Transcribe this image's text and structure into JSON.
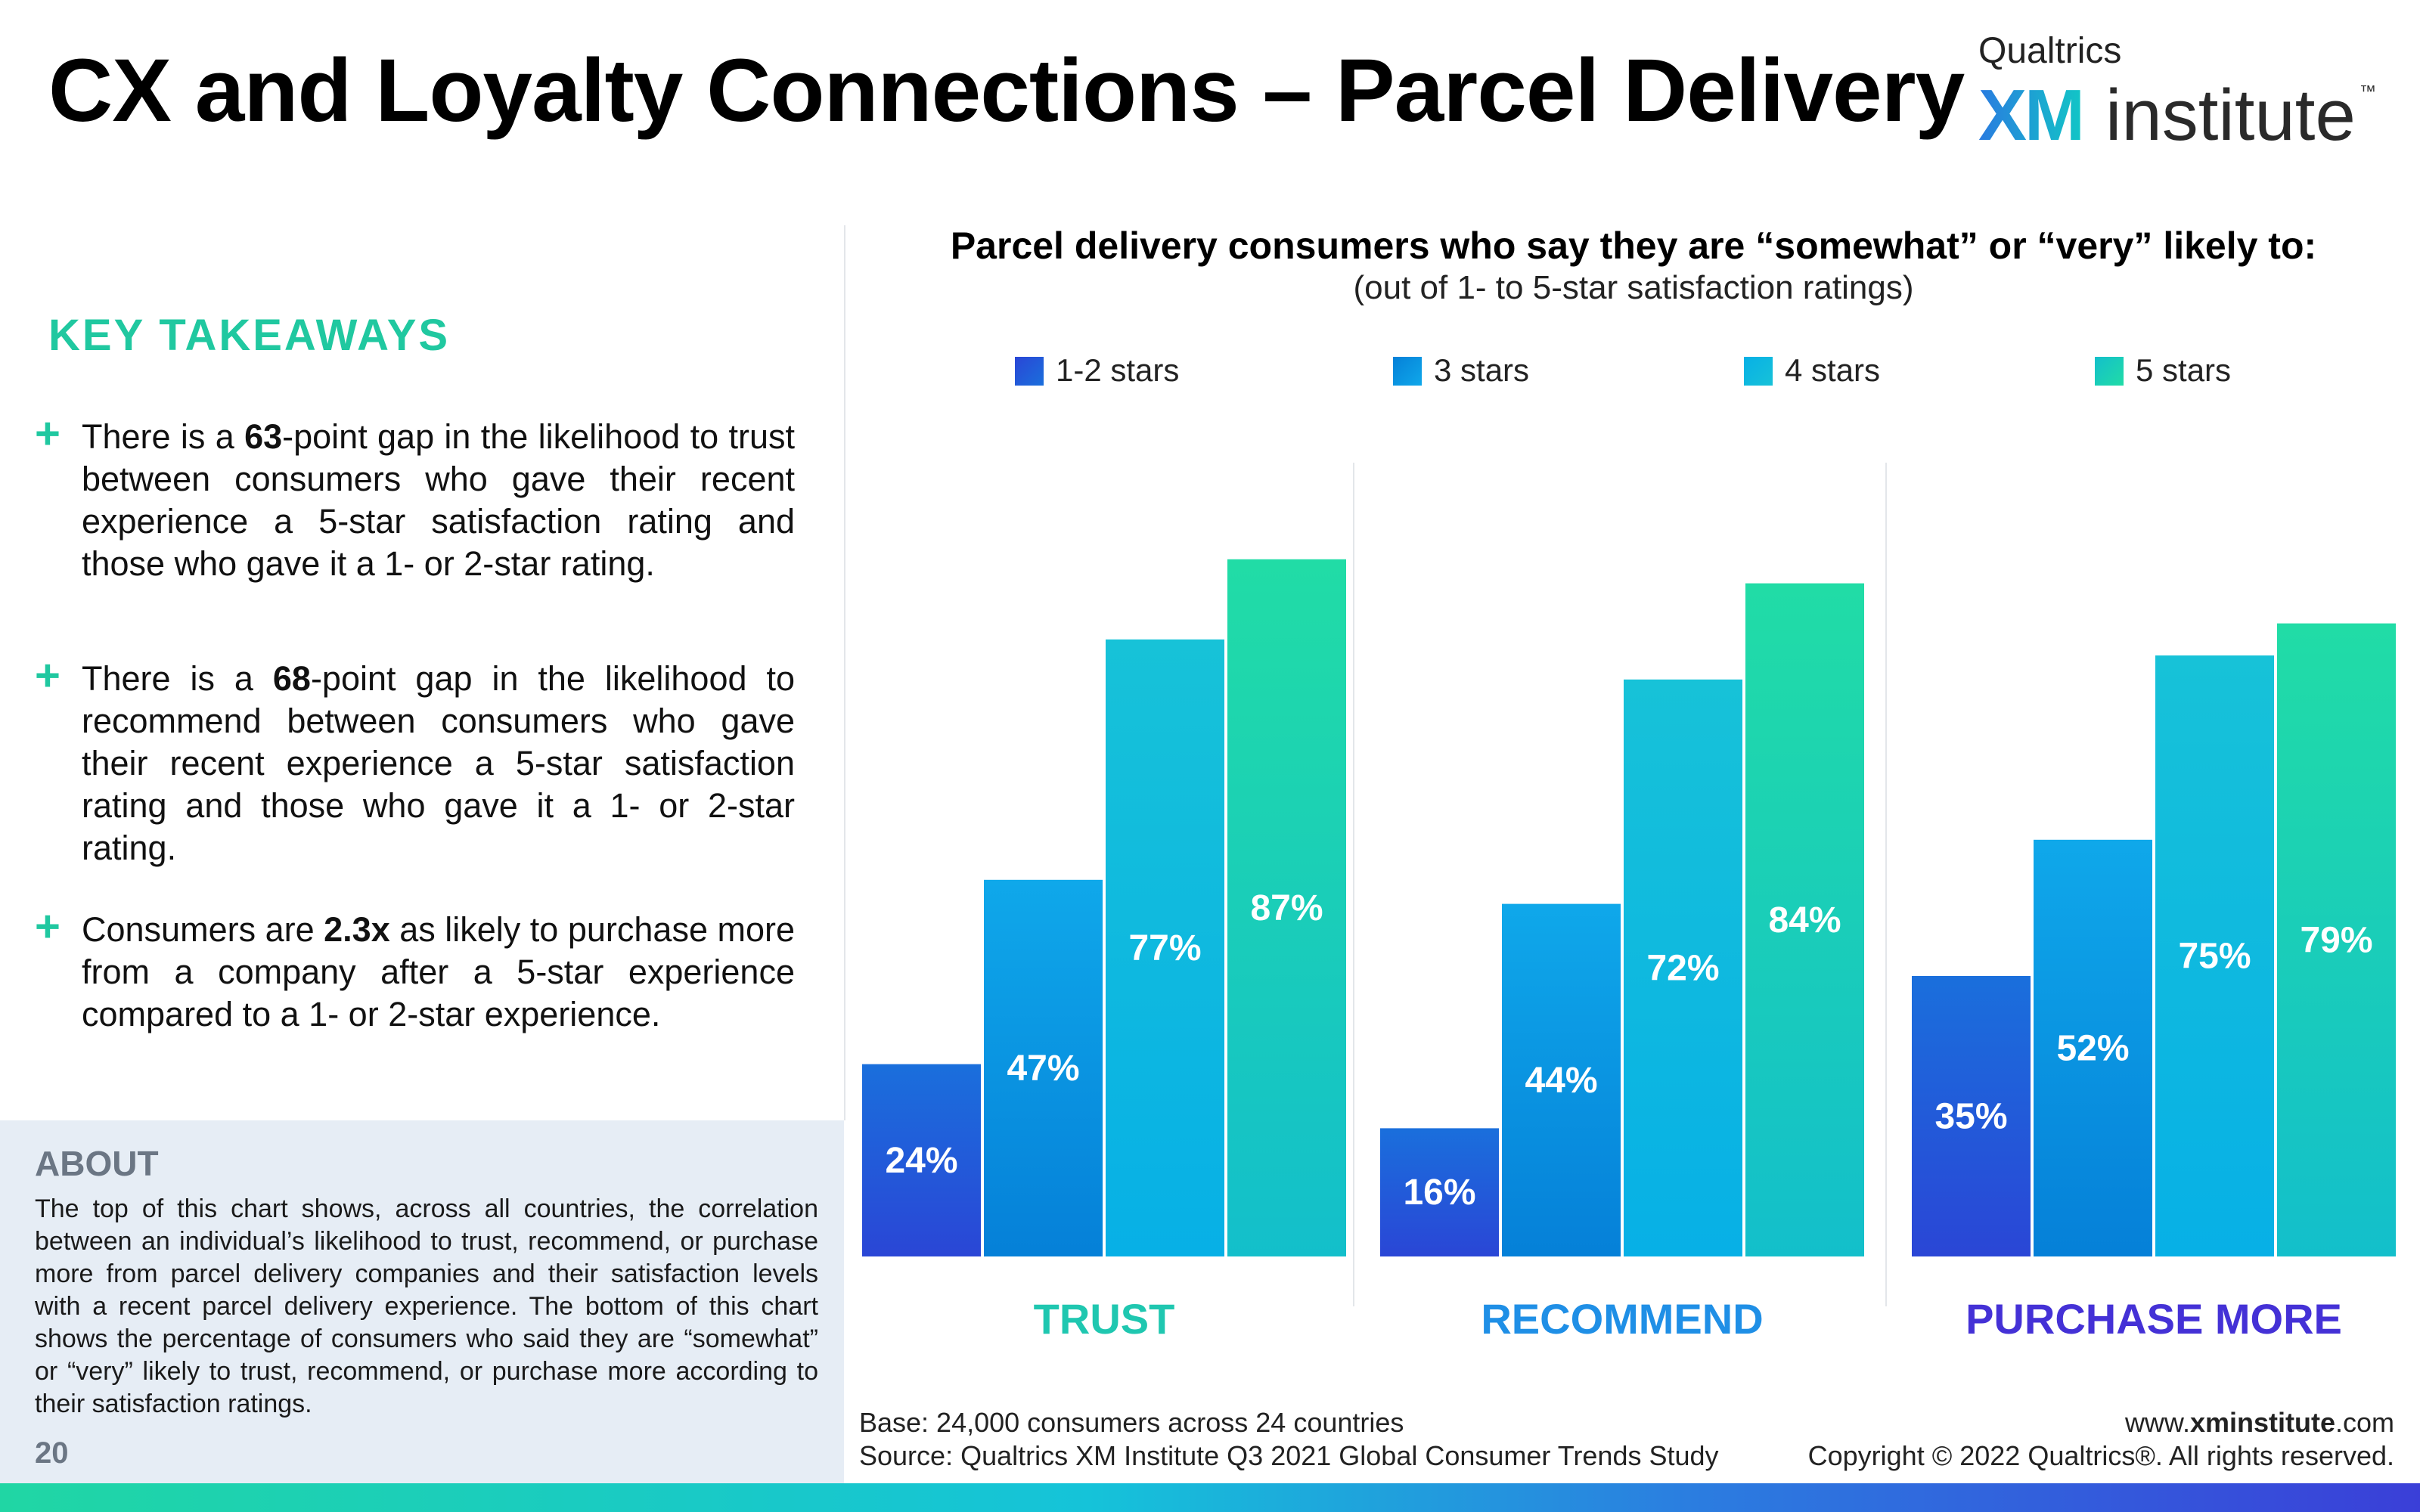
{
  "page": {
    "title": "CX and Loyalty Connections – Parcel Delivery",
    "page_number": "20"
  },
  "logo": {
    "brand": "Qualtrics",
    "xm": "XM",
    "institute": "institute",
    "tm": "™"
  },
  "key_takeaways": {
    "heading": "KEY TAKEAWAYS",
    "items": [
      {
        "pre": "There is a ",
        "bold": "63",
        "post": "-point gap in the likelihood to trust between consumers who gave their recent experience a 5-star satisfaction rating and those who gave it a 1- or 2-star rating."
      },
      {
        "pre": "There is a ",
        "bold": "68",
        "post": "-point gap in the likelihood to recommend between consumers who gave their recent experience a 5-star satisfaction rating and those who gave it a 1- or 2-star rating."
      },
      {
        "pre": "Consumers are ",
        "bold": "2.3x",
        "post": " as likely to purchase more from a company after a 5-star experience compared to a 1- or 2-star experience."
      }
    ]
  },
  "about": {
    "heading": "ABOUT",
    "body": "The top of this chart shows, across all countries, the correlation between an individual’s likelihood to trust, recommend, or purchase more from parcel delivery companies and their satisfaction levels with a recent parcel delivery experience. The bottom of this chart shows the percentage of consumers who said they are “somewhat” or “very” likely to trust, recommend, or purchase more according to their satisfaction ratings."
  },
  "chart_data": {
    "type": "bar",
    "title": "Parcel delivery consumers who say they are “somewhat” or “very” likely to:",
    "subtitle": "(out of 1- to 5-star satisfaction ratings)",
    "categories": [
      "TRUST",
      "RECOMMEND",
      "PURCHASE MORE"
    ],
    "category_colors": [
      "#1fc7b0",
      "#1f8fe6",
      "#4431d6"
    ],
    "series": [
      {
        "name": "1-2 stars",
        "values": [
          24,
          16,
          35
        ],
        "color_top": "#1a6fdc",
        "color_bottom": "#2a46d6"
      },
      {
        "name": "3 stars",
        "values": [
          47,
          44,
          52
        ],
        "color_top": "#0fa8ea",
        "color_bottom": "#0580d8"
      },
      {
        "name": "4 stars",
        "values": [
          77,
          72,
          75
        ],
        "color_top": "#17c2d8",
        "color_bottom": "#07b0e6"
      },
      {
        "name": "5 stars",
        "values": [
          87,
          84,
          79
        ],
        "color_top": "#21dca6",
        "color_bottom": "#13bfcb"
      }
    ],
    "unit": "%",
    "ylim": [
      0,
      100
    ],
    "grid": false,
    "legend_position": "top"
  },
  "footer": {
    "base": "Base: 24,000 consumers across 24 countries",
    "source": "Source: Qualtrics XM Institute Q3 2021 Global Consumer Trends Study",
    "url_prefix": "www.",
    "url_bold": "xminstitute",
    "url_suffix": ".com",
    "copyright": "Copyright © 2022 Qualtrics®. All rights reserved."
  }
}
